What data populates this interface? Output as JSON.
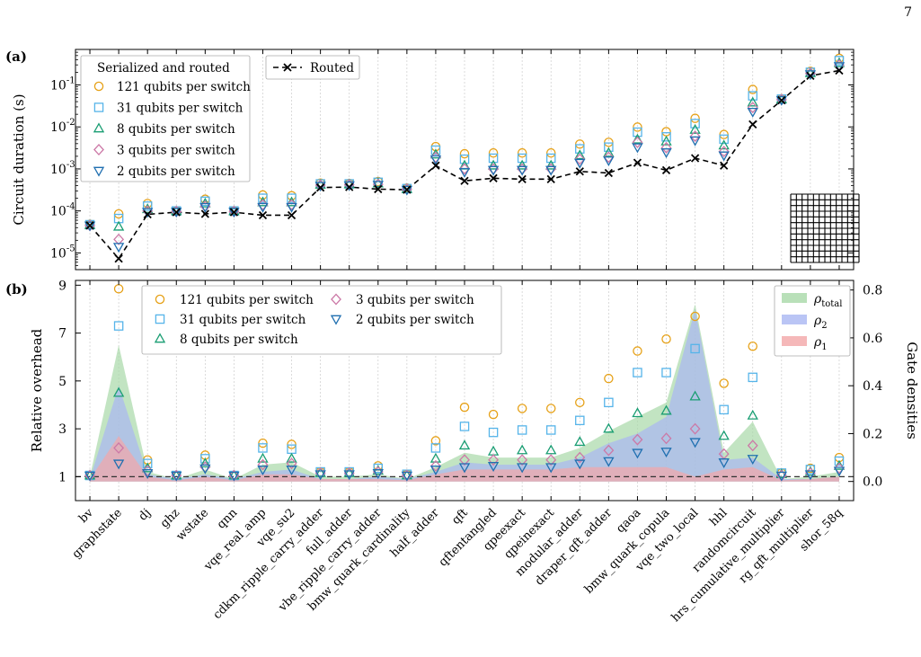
{
  "page_number": "7",
  "colors": {
    "s121": "#e6a118",
    "s31": "#56b4e9",
    "s8": "#1a9e73",
    "s3": "#cc79a7",
    "s2": "#1f6fb0",
    "routed": "#000000",
    "rho_total": "#a8d8a8",
    "rho2": "#a9b7f2",
    "rho1": "#f3a6a8"
  },
  "chart_data": [
    {
      "panel": "(a)",
      "type": "scatter",
      "ylabel": "Circuit duration (s)",
      "yscale": "log",
      "ylim": [
        4e-06,
        0.7
      ],
      "yticks": [
        "10^-5",
        "10^-4",
        "10^-3",
        "10^-2",
        "10^-1"
      ],
      "categories": [
        "bv",
        "graphstate",
        "dj",
        "ghz",
        "wstate",
        "qnn",
        "vqe_real_amp",
        "vqe_su2",
        "cdkm_ripple_carry_adder",
        "full_adder",
        "vbe_ripple_carry_adder",
        "bmw_quark_cardinality",
        "half_adder",
        "qft",
        "qftentangled",
        "qpeexact",
        "qpeinexact",
        "modular_adder",
        "draper_qft_adder",
        "qaoa",
        "bmw_quark_copula",
        "vqe_two_local",
        "hhl",
        "randomcircuit",
        "hrs_cumulative_multiplier",
        "rg_qft_multiplier",
        "shor_58q"
      ],
      "legend_title": "Serialized and routed",
      "series": [
        {
          "name": "121 qubits per switch",
          "marker": "circle",
          "color_key": "s121",
          "values": [
            4.8e-05,
            8.5e-05,
            0.00015,
            0.0001,
            0.00019,
            0.0001,
            0.00024,
            0.00023,
            0.00046,
            0.00045,
            0.0005,
            0.00035,
            0.0034,
            0.0023,
            0.0024,
            0.0024,
            0.0024,
            0.0039,
            0.0043,
            0.0099,
            0.0077,
            0.016,
            0.0066,
            0.078,
            0.047,
            0.21,
            0.43
          ]
        },
        {
          "name": "31 qubits per switch",
          "marker": "square",
          "color_key": "s31",
          "values": [
            4.7e-05,
            6.6e-05,
            0.00013,
            0.0001,
            0.00017,
            0.0001,
            0.0002,
            0.0002,
            0.00044,
            0.00044,
            0.00048,
            0.00034,
            0.0028,
            0.0017,
            0.0018,
            0.0018,
            0.0018,
            0.003,
            0.0033,
            0.0075,
            0.0058,
            0.012,
            0.0051,
            0.055,
            0.046,
            0.2,
            0.38
          ]
        },
        {
          "name": "8 qubits per switch",
          "marker": "triangle-up",
          "color_key": "s8",
          "values": [
            4.6e-05,
            4.2e-05,
            0.00011,
            9.8e-05,
            0.00015,
            9.8e-05,
            0.00016,
            0.00016,
            0.00042,
            0.00043,
            0.00045,
            0.00033,
            0.0022,
            0.0012,
            0.0012,
            0.0012,
            0.0012,
            0.0021,
            0.0024,
            0.005,
            0.0045,
            0.0085,
            0.0036,
            0.038,
            0.045,
            0.19,
            0.33
          ]
        },
        {
          "name": "3 qubits per switch",
          "marker": "diamond",
          "color_key": "s3",
          "values": [
            4.5e-05,
            2.1e-05,
            0.0001,
            9.7e-05,
            0.00013,
            9.7e-05,
            0.00014,
            0.00014,
            0.00041,
            0.00042,
            0.00043,
            0.00033,
            0.0019,
            0.001,
            0.001,
            0.001,
            0.001,
            0.0017,
            0.0019,
            0.0043,
            0.0032,
            0.006,
            0.0026,
            0.029,
            0.045,
            0.19,
            0.3
          ]
        },
        {
          "name": "2 qubits per switch",
          "marker": "triangle-down",
          "color_key": "s2",
          "values": [
            4.5e-05,
            1.4e-05,
            9.5e-05,
            9.6e-05,
            0.000125,
            9.6e-05,
            0.000125,
            0.000125,
            0.0004,
            0.00041,
            0.00042,
            0.00032,
            0.0017,
            0.00085,
            0.00095,
            0.00095,
            0.00095,
            0.0014,
            0.0016,
            0.0033,
            0.0025,
            0.0048,
            0.0021,
            0.023,
            0.044,
            0.18,
            0.28
          ]
        },
        {
          "name": "Routed",
          "marker": "x-dashed-line",
          "color_key": "routed",
          "values": [
            4.5e-05,
            7.3e-06,
            8.3e-05,
            9.3e-05,
            8.5e-05,
            9.3e-05,
            7.9e-05,
            7.9e-05,
            0.00036,
            0.00037,
            0.00033,
            0.00032,
            0.0012,
            0.00052,
            0.0006,
            0.00057,
            0.00057,
            0.00087,
            0.0008,
            0.0014,
            0.00093,
            0.0018,
            0.0012,
            0.0115,
            0.043,
            0.165,
            0.22
          ]
        }
      ]
    },
    {
      "panel": "(b)",
      "type": "scatter",
      "ylabel": "Relative overhead",
      "ylim": [
        0,
        9.2
      ],
      "yticks": [
        1,
        3,
        5,
        7,
        9
      ],
      "y2label": "Gate densities",
      "y2lim": [
        -0.08,
        0.84
      ],
      "y2ticks": [
        0.0,
        0.2,
        0.4,
        0.6,
        0.8
      ],
      "reference_line": 1,
      "series": [
        {
          "name": "121 qubits per switch",
          "marker": "circle",
          "color_key": "s121",
          "values": [
            1.05,
            8.85,
            1.7,
            1.05,
            1.9,
            1.05,
            2.4,
            2.35,
            1.2,
            1.2,
            1.45,
            1.1,
            2.5,
            3.9,
            3.6,
            3.85,
            3.85,
            4.1,
            5.1,
            6.25,
            6.75,
            7.7,
            4.9,
            6.45,
            1.15,
            1.35,
            1.8
          ]
        },
        {
          "name": "31 qubits per switch",
          "marker": "square",
          "color_key": "s31",
          "values": [
            1.05,
            7.3,
            1.55,
            1.05,
            1.75,
            1.05,
            2.2,
            2.15,
            1.2,
            1.2,
            1.35,
            1.1,
            2.2,
            3.1,
            2.85,
            2.95,
            2.95,
            3.35,
            4.1,
            5.35,
            5.35,
            6.35,
            3.8,
            5.15,
            1.15,
            1.3,
            1.65
          ]
        },
        {
          "name": "8 qubits per switch",
          "marker": "triangle-up",
          "color_key": "s8",
          "values": [
            1.05,
            4.5,
            1.35,
            1.05,
            1.55,
            1.05,
            1.75,
            1.75,
            1.15,
            1.15,
            1.25,
            1.05,
            1.75,
            2.3,
            2.05,
            2.1,
            2.1,
            2.45,
            3.0,
            3.65,
            3.75,
            4.35,
            2.7,
            3.55,
            1.1,
            1.2,
            1.45
          ]
        },
        {
          "name": "3 qubits per switch",
          "marker": "diamond",
          "color_key": "s3",
          "values": [
            1.05,
            2.2,
            1.25,
            1.05,
            1.4,
            1.05,
            1.5,
            1.55,
            1.15,
            1.15,
            1.2,
            1.05,
            1.45,
            1.7,
            1.7,
            1.7,
            1.7,
            1.8,
            2.1,
            2.55,
            2.6,
            3.0,
            1.95,
            2.3,
            1.05,
            1.15,
            1.35
          ]
        },
        {
          "name": "2 qubits per switch",
          "marker": "triangle-down",
          "color_key": "s2",
          "values": [
            1.05,
            1.55,
            1.15,
            1.05,
            1.35,
            1.05,
            1.3,
            1.3,
            1.1,
            1.1,
            1.15,
            1.05,
            1.3,
            1.4,
            1.45,
            1.4,
            1.4,
            1.55,
            1.65,
            2.0,
            2.05,
            2.45,
            1.6,
            1.75,
            1.05,
            1.1,
            1.25
          ]
        }
      ],
      "densities": [
        {
          "name": "ρ_total",
          "color_key": "rho_total",
          "values": [
            0.02,
            0.57,
            0.04,
            0.01,
            0.05,
            0.01,
            0.07,
            0.08,
            0.02,
            0.02,
            0.03,
            0.01,
            0.06,
            0.12,
            0.1,
            0.1,
            0.1,
            0.14,
            0.21,
            0.27,
            0.33,
            0.74,
            0.12,
            0.25,
            0.01,
            0.02,
            0.04
          ]
        },
        {
          "name": "ρ_2",
          "color_key": "rho2",
          "values": [
            0.01,
            0.4,
            0.03,
            0.01,
            0.03,
            0.01,
            0.04,
            0.05,
            0.01,
            0.01,
            0.02,
            0.01,
            0.04,
            0.08,
            0.07,
            0.07,
            0.07,
            0.1,
            0.16,
            0.2,
            0.27,
            0.72,
            0.09,
            0.1,
            0.01,
            0.01,
            0.02
          ]
        },
        {
          "name": "ρ_1",
          "color_key": "rho1",
          "values": [
            0.01,
            0.19,
            0.02,
            0.005,
            0.02,
            0.005,
            0.03,
            0.03,
            0.01,
            0.01,
            0.01,
            0.005,
            0.03,
            0.05,
            0.05,
            0.05,
            0.05,
            0.06,
            0.06,
            0.06,
            0.06,
            0.02,
            0.05,
            0.06,
            0.005,
            0.01,
            0.02
          ]
        }
      ]
    }
  ]
}
